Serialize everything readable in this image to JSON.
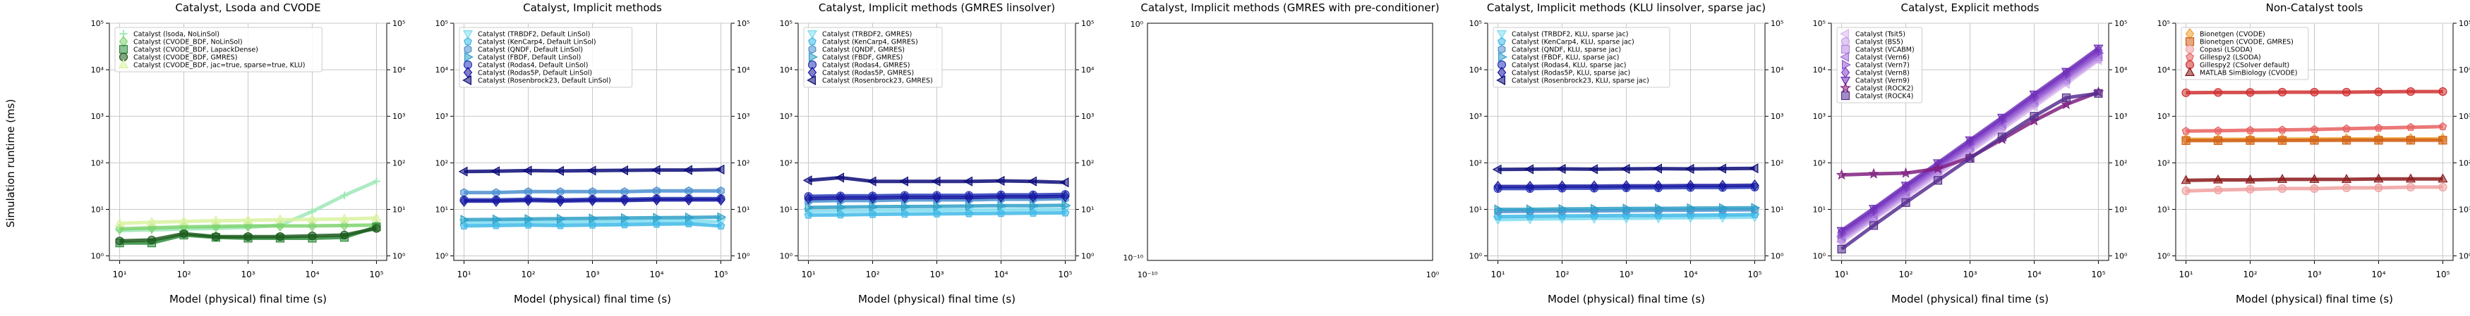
{
  "figure": {
    "ylabel": "Simulation runtime (ms)"
  },
  "chart_data": [
    {
      "type": "line",
      "title": "Catalyst, Lsoda and CVODE",
      "xlabel": "Model (physical) final time (s)",
      "ylabel": "Simulation runtime (ms)",
      "xscale": "log",
      "yscale": "log",
      "xlim": [
        10,
        100000
      ],
      "ylim": [
        0.8,
        100000
      ],
      "xticks": [
        "10¹",
        "10²",
        "10³",
        "10⁴",
        "10⁵"
      ],
      "yticks": [
        "10⁰",
        "10¹",
        "10²",
        "10³",
        "10⁴",
        "10⁵"
      ],
      "grid": true,
      "legend": "top-left",
      "x": [
        10,
        31.6,
        100,
        316,
        1000,
        3162,
        10000,
        31623,
        100000
      ],
      "series": [
        {
          "name": "Catalyst (lsoda, NoLinSol)",
          "color": "#9fe8b8",
          "marker": "+",
          "values": [
            3.5,
            3.6,
            3.8,
            3.9,
            4.1,
            4.6,
            9.0,
            20.0,
            40.0
          ]
        },
        {
          "name": "Catalyst (CVODE_BDF, NoLinSol)",
          "color": "#7fd36e",
          "marker": "D",
          "values": [
            3.8,
            4.0,
            4.2,
            4.3,
            4.4,
            4.4,
            4.4,
            4.5,
            4.6
          ]
        },
        {
          "name": "Catalyst (CVODE_BDF, LapackDense)",
          "color": "#2e8b3a",
          "marker": "s",
          "values": [
            1.9,
            1.9,
            2.8,
            2.5,
            2.4,
            2.4,
            2.4,
            2.5,
            4.2
          ]
        },
        {
          "name": "Catalyst (CVODE_BDF, GMRES)",
          "color": "#1e5a1e",
          "marker": "o",
          "values": [
            2.1,
            2.2,
            3.0,
            2.6,
            2.6,
            2.6,
            2.7,
            2.8,
            3.9
          ]
        },
        {
          "name": "Catalyst (CVODE_BDF, jac=true, sparse=true, KLU)",
          "color": "#d9f2a0",
          "marker": "^",
          "values": [
            5.0,
            5.3,
            5.5,
            5.7,
            5.8,
            6.0,
            6.1,
            6.2,
            6.5
          ]
        }
      ]
    },
    {
      "type": "line",
      "title": "Catalyst, Implicit methods",
      "xlabel": "Model (physical) final time (s)",
      "xscale": "log",
      "yscale": "log",
      "xlim": [
        10,
        100000
      ],
      "ylim": [
        0.8,
        100000
      ],
      "xticks": [
        "10¹",
        "10²",
        "10³",
        "10⁴",
        "10⁵"
      ],
      "yticks": [
        "10⁰",
        "10¹",
        "10²",
        "10³",
        "10⁴",
        "10⁵"
      ],
      "grid": true,
      "legend": "top-left",
      "x": [
        10,
        31.6,
        100,
        316,
        1000,
        3162,
        10000,
        31623,
        100000
      ],
      "series": [
        {
          "name": "Catalyst (TRBDF2, Default LinSol)",
          "color": "#7fdcf0",
          "marker": "v",
          "values": [
            5.2,
            5.3,
            5.4,
            5.3,
            5.4,
            5.5,
            5.6,
            5.7,
            5.4
          ]
        },
        {
          "name": "Catalyst (KenCarp4, Default LinSol)",
          "color": "#3fb8e8",
          "marker": "p",
          "values": [
            4.4,
            4.5,
            4.6,
            4.5,
            4.6,
            4.7,
            4.8,
            4.9,
            4.4
          ]
        },
        {
          "name": "Catalyst (QNDF, Default LinSol)",
          "color": "#4a8fd0",
          "marker": "h",
          "values": [
            23,
            23,
            24,
            24,
            24,
            24,
            25,
            25,
            25
          ]
        },
        {
          "name": "Catalyst (FBDF, Default LinSol)",
          "color": "#2fa0c8",
          "marker": ">",
          "values": [
            6.0,
            6.1,
            6.2,
            6.3,
            6.4,
            6.5,
            6.6,
            6.7,
            6.8
          ]
        },
        {
          "name": "Catalyst (Rodas4, Default LinSol)",
          "color": "#2838b8",
          "marker": "o",
          "values": [
            16,
            16,
            16.5,
            16,
            16.5,
            16.5,
            17,
            17,
            17
          ]
        },
        {
          "name": "Catalyst (Rodas5P, Default LinSol)",
          "color": "#1818a0",
          "marker": "D",
          "values": [
            15,
            15,
            15.5,
            15,
            15.5,
            15.5,
            16,
            16,
            16
          ]
        },
        {
          "name": "Catalyst (Rosenbrock23, Default LinSol)",
          "color": "#0a0a78",
          "marker": "<",
          "values": [
            65,
            66,
            68,
            67,
            68,
            69,
            70,
            70,
            72
          ]
        }
      ]
    },
    {
      "type": "line",
      "title": "Catalyst, Implicit methods (GMRES linsolver)",
      "xlabel": "Model (physical) final time (s)",
      "xscale": "log",
      "yscale": "log",
      "xlim": [
        10,
        100000
      ],
      "ylim": [
        0.8,
        100000
      ],
      "xticks": [
        "10¹",
        "10²",
        "10³",
        "10⁴",
        "10⁵"
      ],
      "yticks": [
        "10⁰",
        "10¹",
        "10²",
        "10³",
        "10⁴",
        "10⁵"
      ],
      "grid": true,
      "legend": "top-left",
      "x": [
        10,
        31.6,
        100,
        316,
        1000,
        3162,
        10000,
        31623,
        100000
      ],
      "series": [
        {
          "name": "Catalyst (TRBDF2, GMRES)",
          "color": "#7fdcf0",
          "marker": "v",
          "values": [
            9,
            9.2,
            9.4,
            9.5,
            9.6,
            9.7,
            9.8,
            9.9,
            10
          ]
        },
        {
          "name": "Catalyst (KenCarp4, GMRES)",
          "color": "#3fb8e8",
          "marker": "p",
          "values": [
            7.5,
            7.6,
            7.8,
            7.9,
            8.0,
            8.1,
            8.2,
            8.3,
            8.4
          ]
        },
        {
          "name": "Catalyst (QNDF, GMRES)",
          "color": "#4a8fd0",
          "marker": "h",
          "values": [
            15,
            15.5,
            15.5,
            16,
            16,
            16,
            16.5,
            16.5,
            17
          ]
        },
        {
          "name": "Catalyst (FBDF, GMRES)",
          "color": "#2fa0c8",
          "marker": ">",
          "values": [
            11,
            11.2,
            11.4,
            11.5,
            11.6,
            11.8,
            12,
            12,
            12.2
          ]
        },
        {
          "name": "Catalyst (Rodas4, GMRES)",
          "color": "#2838b8",
          "marker": "o",
          "values": [
            19,
            19.5,
            19.5,
            20,
            20,
            20,
            20.5,
            20.5,
            21
          ]
        },
        {
          "name": "Catalyst (Rodas5P, GMRES)",
          "color": "#1818a0",
          "marker": "D",
          "values": [
            17,
            17.5,
            17.5,
            18,
            18,
            18,
            18.5,
            18.5,
            19
          ]
        },
        {
          "name": "Catalyst (Rosenbrock23, GMRES)",
          "color": "#0a0a78",
          "marker": "<",
          "values": [
            42,
            48,
            40,
            40,
            40,
            40,
            41,
            40,
            38
          ]
        }
      ]
    },
    {
      "type": "line",
      "title": "Catalyst, Implicit methods (GMRES with pre-conditioner)",
      "xlabel": "",
      "xscale": "log",
      "yscale": "log",
      "xticks": [
        "10⁻¹⁰",
        "10⁰"
      ],
      "yticks": [
        "10⁻¹⁰",
        "10⁰"
      ],
      "grid": false,
      "legend": "",
      "series": []
    },
    {
      "type": "line",
      "title": "Catalyst, Implicit methods (KLU linsolver, sparse jac)",
      "xlabel": "Model (physical) final time (s)",
      "xscale": "log",
      "yscale": "log",
      "xlim": [
        10,
        100000
      ],
      "ylim": [
        0.8,
        100000
      ],
      "xticks": [
        "10¹",
        "10²",
        "10³",
        "10⁴",
        "10⁵"
      ],
      "yticks": [
        "10⁰",
        "10¹",
        "10²",
        "10³",
        "10⁴",
        "10⁵"
      ],
      "grid": true,
      "legend": "top-left",
      "x": [
        10,
        31.6,
        100,
        316,
        1000,
        3162,
        10000,
        31623,
        100000
      ],
      "series": [
        {
          "name": "Catalyst (TRBDF2, KLU, sparse jac)",
          "color": "#7fdcf0",
          "marker": "v",
          "values": [
            6.0,
            6.2,
            6.3,
            6.4,
            6.4,
            6.5,
            6.6,
            6.7,
            6.8
          ]
        },
        {
          "name": "Catalyst (KenCarp4, KLU, sparse jac)",
          "color": "#3fb8e8",
          "marker": "p",
          "values": [
            7.0,
            7.1,
            7.2,
            7.3,
            7.4,
            7.4,
            7.5,
            7.6,
            7.7
          ]
        },
        {
          "name": "Catalyst (QNDF, KLU, sparse jac)",
          "color": "#4a8fd0",
          "marker": "h",
          "values": [
            9.0,
            9.1,
            9.2,
            9.3,
            9.4,
            9.5,
            9.6,
            9.7,
            9.8
          ]
        },
        {
          "name": "Catalyst (FBDF, KLU, sparse jac)",
          "color": "#2fa0c8",
          "marker": ">",
          "values": [
            10,
            10,
            10.2,
            10.3,
            10.4,
            10.5,
            10.6,
            10.7,
            10.8
          ]
        },
        {
          "name": "Catalyst (Rodas4, KLU, sparse jac)",
          "color": "#2838b8",
          "marker": "o",
          "values": [
            28,
            28,
            28.5,
            28.5,
            29,
            29,
            29.5,
            29.5,
            30
          ]
        },
        {
          "name": "Catalyst (Rodas5P, KLU, sparse jac)",
          "color": "#1818a0",
          "marker": "D",
          "values": [
            31,
            31,
            31.5,
            31.5,
            32,
            32,
            32.5,
            32.5,
            33
          ]
        },
        {
          "name": "Catalyst (Rosenbrock23, KLU, sparse jac)",
          "color": "#0a0a78",
          "marker": "<",
          "values": [
            72,
            73,
            74,
            73,
            74,
            75,
            74,
            75,
            76
          ]
        }
      ]
    },
    {
      "type": "line",
      "title": "Catalyst, Explicit methods",
      "xlabel": "Model (physical) final time (s)",
      "xscale": "log",
      "yscale": "log",
      "xlim": [
        10,
        100000
      ],
      "ylim": [
        0.8,
        100000
      ],
      "xticks": [
        "10¹",
        "10²",
        "10³",
        "10⁴",
        "10⁵"
      ],
      "yticks": [
        "10⁰",
        "10¹",
        "10²",
        "10³",
        "10⁴",
        "10⁵"
      ],
      "grid": true,
      "legend": "top-left",
      "x": [
        10,
        31.6,
        100,
        316,
        1000,
        3162,
        10000,
        31623,
        100000
      ],
      "series": [
        {
          "name": "Catalyst (Tsit5)",
          "color": "#d8b8f0",
          "marker": "<",
          "values": [
            2.0,
            6.0,
            18,
            55,
            170,
            520,
            1600,
            5000,
            16000
          ]
        },
        {
          "name": "Catalyst (BS5)",
          "color": "#c8a0e8",
          "marker": "o",
          "values": [
            2.2,
            6.5,
            20,
            62,
            190,
            580,
            1800,
            5600,
            17000
          ]
        },
        {
          "name": "Catalyst (VCABM)",
          "color": "#b888e0",
          "marker": "s",
          "values": [
            2.4,
            7.0,
            22,
            68,
            210,
            640,
            2000,
            6200,
            19000
          ]
        },
        {
          "name": "Catalyst (Vern6)",
          "color": "#a070d8",
          "marker": "<",
          "values": [
            2.6,
            7.8,
            24,
            74,
            230,
            700,
            2200,
            6800,
            21000
          ]
        },
        {
          "name": "Catalyst (Vern7)",
          "color": "#9058d0",
          "marker": ">",
          "values": [
            2.9,
            8.6,
            27,
            82,
            250,
            780,
            2400,
            7500,
            23000
          ]
        },
        {
          "name": "Catalyst (Vern8)",
          "color": "#8040c8",
          "marker": "D",
          "values": [
            3.2,
            9.5,
            30,
            90,
            280,
            860,
            2700,
            8300,
            26000
          ]
        },
        {
          "name": "Catalyst (Vern9)",
          "color": "#7030b8",
          "marker": "v",
          "values": [
            3.5,
            10.5,
            33,
            100,
            310,
            950,
            3000,
            9200,
            29000
          ]
        },
        {
          "name": "Catalyst (ROCK2)",
          "color": "#802080",
          "marker": "*",
          "values": [
            55,
            58,
            60,
            75,
            130,
            320,
            800,
            1800,
            3300
          ]
        },
        {
          "name": "Catalyst (ROCK4)",
          "color": "#583090",
          "marker": "s",
          "values": [
            1.4,
            4.5,
            14,
            42,
            125,
            360,
            1000,
            2500,
            3100
          ]
        }
      ]
    },
    {
      "type": "line",
      "title": "Non-Catalyst tools",
      "xlabel": "Model (physical) final time (s)",
      "xscale": "log",
      "yscale": "log",
      "xlim": [
        10,
        100000
      ],
      "ylim": [
        0.8,
        100000
      ],
      "xticks": [
        "10¹",
        "10²",
        "10³",
        "10⁴",
        "10⁵"
      ],
      "yticks": [
        "10⁰",
        "10¹",
        "10²",
        "10³",
        "10⁴",
        "10⁵"
      ],
      "grid": true,
      "legend": "top-left",
      "x": [
        10,
        31.6,
        100,
        316,
        1000,
        3162,
        10000,
        31623,
        100000
      ],
      "series": [
        {
          "name": "Bionetgen (CVODE)",
          "color": "#f0a030",
          "marker": "D",
          "values": [
            320,
            320,
            322,
            322,
            324,
            325,
            325,
            326,
            326
          ]
        },
        {
          "name": "Bionetgen (CVODE, GMRES)",
          "color": "#d06018",
          "marker": "s",
          "values": [
            300,
            300,
            302,
            302,
            304,
            305,
            305,
            306,
            306
          ]
        },
        {
          "name": "Copasi (LSODA)",
          "color": "#f0a0a0",
          "marker": "o",
          "values": [
            25,
            26,
            27,
            28,
            28,
            29,
            29,
            30,
            30
          ]
        },
        {
          "name": "Gillespy2 (LSODA)",
          "color": "#e86060",
          "marker": "p",
          "values": [
            480,
            490,
            500,
            510,
            520,
            540,
            560,
            580,
            600
          ]
        },
        {
          "name": "Gillespy2 (CSolver default)",
          "color": "#d03030",
          "marker": "o",
          "values": [
            3200,
            3250,
            3250,
            3300,
            3300,
            3300,
            3350,
            3400,
            3400
          ]
        },
        {
          "name": "MATLAB SimBiology (CVODE)",
          "color": "#8a1818",
          "marker": "^",
          "values": [
            42,
            43,
            43,
            44,
            44,
            44,
            45,
            45,
            45
          ]
        }
      ]
    }
  ]
}
